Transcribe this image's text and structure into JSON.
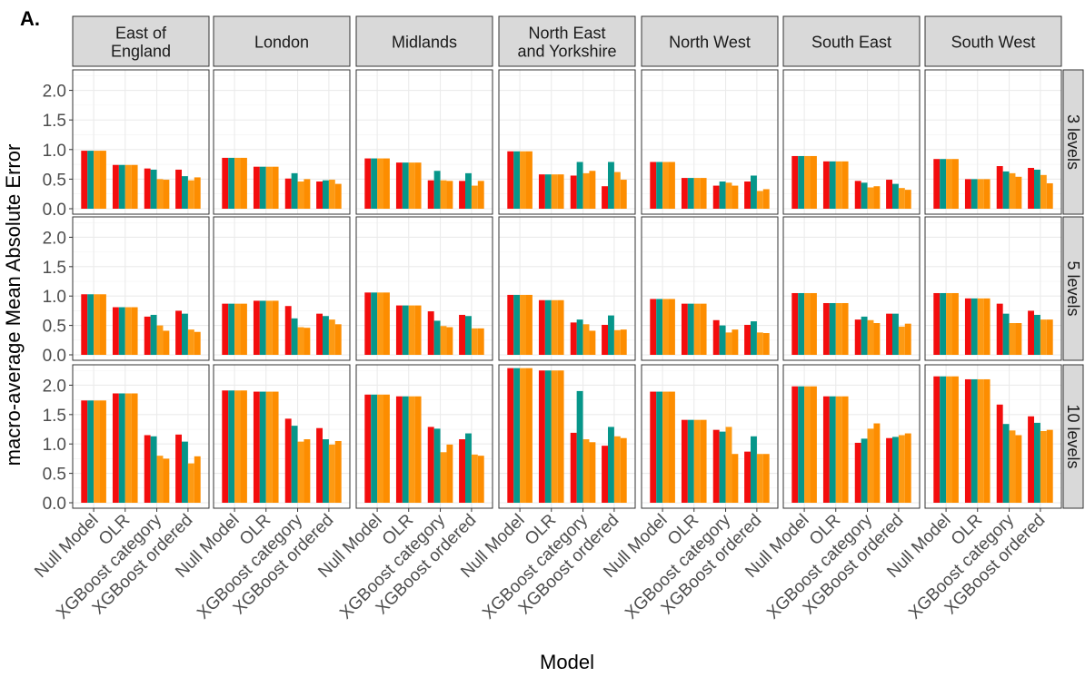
{
  "figure": {
    "panel_label": "A.",
    "xlabel": "Model",
    "ylabel": "macro-average Mean Absolute Error"
  },
  "colors": {
    "bar_colors": [
      "#f30d0d",
      "#06968a",
      "#fd9a13",
      "#fd8d00"
    ],
    "strip_fill": "#d9d9d9",
    "panel_bg": "#ffffff",
    "grid": "#ebebeb",
    "border": "#333333"
  },
  "chart_data": {
    "type": "bar",
    "facet_columns": [
      "East of\nEngland",
      "London",
      "Midlands",
      "North East\nand Yorkshire",
      "North West",
      "South East",
      "South West"
    ],
    "facet_rows": [
      "3 levels",
      "5 levels",
      "10 levels"
    ],
    "categories": [
      "Null Model",
      "OLR",
      "XGBoost category",
      "XGBoost ordered"
    ],
    "bars_per_category": 4,
    "ylim": [
      0,
      2.3
    ],
    "yticks": [
      0.0,
      0.5,
      1.0,
      1.5,
      2.0
    ],
    "ytick_labels": [
      "0.0",
      "0.5",
      "1.0",
      "1.5",
      "2.0"
    ],
    "grid": true,
    "values": [
      [
        [
          [
            0.98,
            0.98,
            0.98,
            0.98
          ],
          [
            0.74,
            0.74,
            0.74,
            0.74
          ],
          [
            0.68,
            0.66,
            0.5,
            0.49
          ],
          [
            0.66,
            0.55,
            0.48,
            0.53
          ]
        ],
        [
          [
            0.86,
            0.86,
            0.86,
            0.86
          ],
          [
            0.71,
            0.71,
            0.71,
            0.71
          ],
          [
            0.51,
            0.6,
            0.46,
            0.5
          ],
          [
            0.46,
            0.48,
            0.49,
            0.42
          ]
        ],
        [
          [
            0.85,
            0.85,
            0.85,
            0.85
          ],
          [
            0.78,
            0.78,
            0.78,
            0.78
          ],
          [
            0.48,
            0.64,
            0.48,
            0.47
          ],
          [
            0.47,
            0.6,
            0.39,
            0.47
          ]
        ],
        [
          [
            0.97,
            0.97,
            0.97,
            0.97
          ],
          [
            0.58,
            0.58,
            0.58,
            0.58
          ],
          [
            0.56,
            0.79,
            0.6,
            0.64
          ],
          [
            0.38,
            0.79,
            0.62,
            0.49
          ]
        ],
        [
          [
            0.79,
            0.79,
            0.79,
            0.79
          ],
          [
            0.52,
            0.52,
            0.52,
            0.52
          ],
          [
            0.39,
            0.46,
            0.44,
            0.39
          ],
          [
            0.46,
            0.56,
            0.3,
            0.33
          ]
        ],
        [
          [
            0.89,
            0.89,
            0.89,
            0.89
          ],
          [
            0.8,
            0.8,
            0.8,
            0.8
          ],
          [
            0.47,
            0.44,
            0.36,
            0.38
          ],
          [
            0.49,
            0.42,
            0.35,
            0.32
          ]
        ],
        [
          [
            0.84,
            0.84,
            0.84,
            0.84
          ],
          [
            0.5,
            0.5,
            0.5,
            0.5
          ],
          [
            0.72,
            0.63,
            0.6,
            0.54
          ],
          [
            0.69,
            0.66,
            0.57,
            0.43
          ]
        ]
      ],
      [
        [
          [
            1.03,
            1.03,
            1.03,
            1.03
          ],
          [
            0.81,
            0.81,
            0.81,
            0.81
          ],
          [
            0.65,
            0.68,
            0.5,
            0.41
          ],
          [
            0.75,
            0.7,
            0.43,
            0.39
          ]
        ],
        [
          [
            0.87,
            0.87,
            0.87,
            0.87
          ],
          [
            0.92,
            0.92,
            0.92,
            0.92
          ],
          [
            0.83,
            0.62,
            0.47,
            0.46
          ],
          [
            0.7,
            0.66,
            0.6,
            0.52
          ]
        ],
        [
          [
            1.06,
            1.06,
            1.06,
            1.06
          ],
          [
            0.84,
            0.84,
            0.84,
            0.84
          ],
          [
            0.74,
            0.58,
            0.49,
            0.47
          ],
          [
            0.68,
            0.66,
            0.45,
            0.45
          ]
        ],
        [
          [
            1.02,
            1.02,
            1.02,
            1.02
          ],
          [
            0.93,
            0.93,
            0.93,
            0.93
          ],
          [
            0.55,
            0.6,
            0.52,
            0.41
          ],
          [
            0.51,
            0.67,
            0.42,
            0.43
          ]
        ],
        [
          [
            0.95,
            0.95,
            0.95,
            0.95
          ],
          [
            0.87,
            0.87,
            0.87,
            0.87
          ],
          [
            0.59,
            0.5,
            0.38,
            0.43
          ],
          [
            0.51,
            0.57,
            0.38,
            0.37
          ]
        ],
        [
          [
            1.05,
            1.05,
            1.05,
            1.05
          ],
          [
            0.88,
            0.88,
            0.88,
            0.88
          ],
          [
            0.6,
            0.65,
            0.59,
            0.54
          ],
          [
            0.7,
            0.7,
            0.48,
            0.53
          ]
        ],
        [
          [
            1.05,
            1.05,
            1.05,
            1.05
          ],
          [
            0.96,
            0.96,
            0.96,
            0.96
          ],
          [
            0.87,
            0.7,
            0.54,
            0.54
          ],
          [
            0.75,
            0.68,
            0.6,
            0.6
          ]
        ]
      ],
      [
        [
          [
            1.74,
            1.74,
            1.74,
            1.74
          ],
          [
            1.86,
            1.86,
            1.86,
            1.86
          ],
          [
            1.15,
            1.13,
            0.8,
            0.75
          ],
          [
            1.16,
            1.04,
            0.67,
            0.79
          ]
        ],
        [
          [
            1.91,
            1.91,
            1.91,
            1.91
          ],
          [
            1.89,
            1.89,
            1.89,
            1.89
          ],
          [
            1.43,
            1.31,
            1.04,
            1.08
          ],
          [
            1.27,
            1.08,
            0.99,
            1.05
          ]
        ],
        [
          [
            1.84,
            1.84,
            1.84,
            1.84
          ],
          [
            1.81,
            1.81,
            1.81,
            1.81
          ],
          [
            1.29,
            1.26,
            0.86,
            0.99
          ],
          [
            1.08,
            1.18,
            0.82,
            0.8
          ]
        ],
        [
          [
            2.29,
            2.29,
            2.29,
            2.29
          ],
          [
            2.25,
            2.25,
            2.25,
            2.25
          ],
          [
            1.19,
            1.9,
            1.08,
            1.03
          ],
          [
            0.97,
            1.29,
            1.13,
            1.1
          ]
        ],
        [
          [
            1.89,
            1.89,
            1.89,
            1.89
          ],
          [
            1.41,
            1.41,
            1.41,
            1.41
          ],
          [
            1.24,
            1.21,
            1.29,
            0.83
          ],
          [
            0.87,
            1.13,
            0.83,
            0.83
          ]
        ],
        [
          [
            1.98,
            1.98,
            1.98,
            1.98
          ],
          [
            1.81,
            1.81,
            1.81,
            1.81
          ],
          [
            1.02,
            1.09,
            1.26,
            1.35
          ],
          [
            1.1,
            1.12,
            1.15,
            1.18
          ]
        ],
        [
          [
            2.15,
            2.15,
            2.15,
            2.15
          ],
          [
            2.1,
            2.1,
            2.1,
            2.1
          ],
          [
            1.67,
            1.34,
            1.23,
            1.15
          ],
          [
            1.47,
            1.36,
            1.22,
            1.24
          ]
        ]
      ]
    ]
  }
}
